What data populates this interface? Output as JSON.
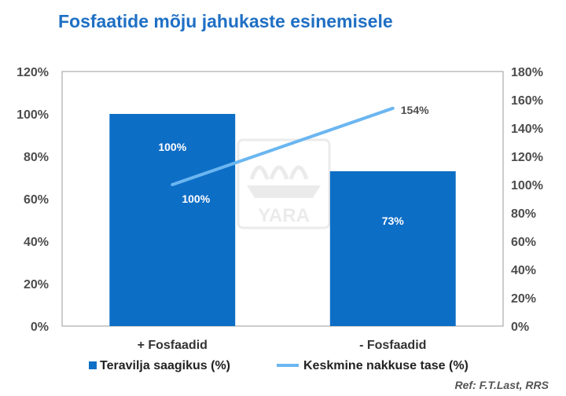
{
  "title": "Fosfaatide mõju jahukaste esinemisele",
  "reference": "Ref: F.T.Last, RRS",
  "watermark": "YARA",
  "colors": {
    "bar": "#0d6ec6",
    "line": "#6bb6f0",
    "title": "#1f6fc4",
    "axis_text": "#4d4d4d",
    "plot_border": "#9b9b9b"
  },
  "chart_data": {
    "type": "bar",
    "categories": [
      "+  Fosfaadid",
      "- Fosfaadid"
    ],
    "series": [
      {
        "name": "Teravilja saagikus (%)",
        "type": "bar",
        "axis": "left",
        "values": [
          100,
          73
        ],
        "labels": [
          "100%",
          "73%"
        ]
      },
      {
        "name": "Keskmine nakkuse tase (%)",
        "type": "line",
        "axis": "right",
        "values": [
          100,
          154
        ],
        "labels": [
          "100%",
          "154%"
        ]
      }
    ],
    "y_left": {
      "ylim": [
        0,
        120
      ],
      "ticks": [
        "0%",
        "20%",
        "40%",
        "60%",
        "80%",
        "100%",
        "120%"
      ]
    },
    "y_right": {
      "ylim": [
        0,
        180
      ],
      "ticks": [
        "0%",
        "20%",
        "40%",
        "60%",
        "80%",
        "100%",
        "120%",
        "140%",
        "160%",
        "180%"
      ]
    },
    "grid": false,
    "legend_position": "bottom"
  }
}
